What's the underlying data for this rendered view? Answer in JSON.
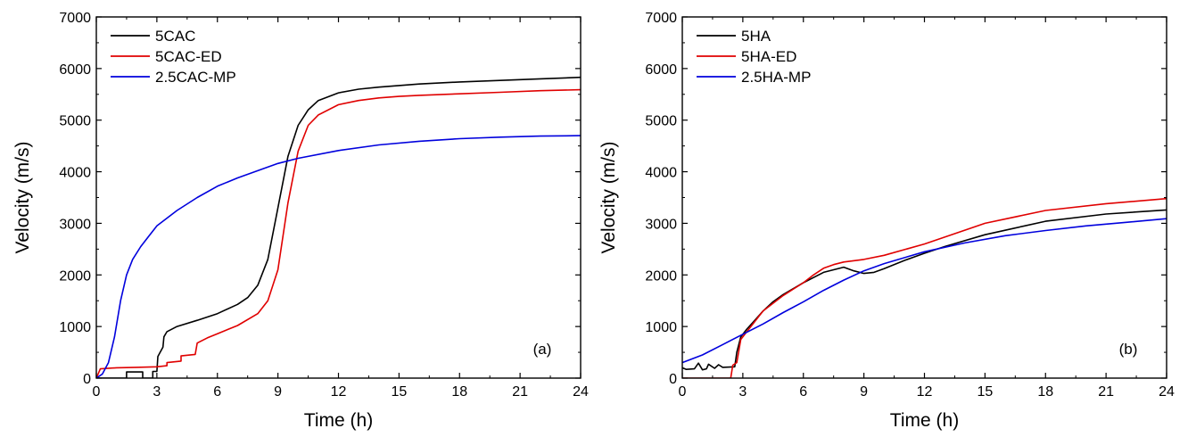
{
  "chart_data": [
    {
      "type": "line",
      "panel_label": "(a)",
      "xlabel": "Time (h)",
      "ylabel": "Velocity (m/s)",
      "xlim": [
        0,
        24
      ],
      "ylim": [
        0,
        7000
      ],
      "xticks": [
        "0",
        "3",
        "6",
        "9",
        "12",
        "15",
        "18",
        "21",
        "24"
      ],
      "yticks": [
        "0",
        "1000",
        "2000",
        "3000",
        "4000",
        "5000",
        "6000",
        "7000"
      ],
      "grid": false,
      "legend_position": "top-left",
      "series": [
        {
          "name": "5CAC",
          "color": "#000000",
          "x": [
            0,
            1.5,
            1.5,
            2.3,
            2.3,
            2.8,
            2.8,
            3.0,
            3.05,
            3.3,
            3.35,
            3.5,
            4,
            5,
            6,
            7,
            7.5,
            8,
            8.5,
            9,
            9.5,
            10,
            10.5,
            11,
            12,
            13,
            14,
            15,
            16,
            18,
            20,
            22,
            24
          ],
          "y": [
            0,
            0,
            120,
            120,
            0,
            0,
            130,
            130,
            420,
            600,
            800,
            900,
            1000,
            1120,
            1250,
            1430,
            1560,
            1800,
            2300,
            3300,
            4300,
            4900,
            5200,
            5380,
            5530,
            5600,
            5640,
            5670,
            5700,
            5740,
            5770,
            5800,
            5830
          ]
        },
        {
          "name": "5CAC-ED",
          "color": "#e00000",
          "x": [
            0,
            0.2,
            1,
            2,
            3,
            3.5,
            3.5,
            4.2,
            4.2,
            4.9,
            5.0,
            5.5,
            6,
            7,
            8,
            8.5,
            9,
            9.5,
            10,
            10.5,
            11,
            12,
            13,
            14,
            15,
            16,
            18,
            20,
            22,
            24
          ],
          "y": [
            0,
            180,
            200,
            210,
            220,
            240,
            300,
            330,
            430,
            460,
            680,
            780,
            860,
            1020,
            1250,
            1500,
            2100,
            3400,
            4400,
            4900,
            5100,
            5300,
            5380,
            5430,
            5460,
            5480,
            5510,
            5540,
            5570,
            5590
          ]
        },
        {
          "name": "2.5CAC-MP",
          "color": "#0000dd",
          "x": [
            0,
            0.3,
            0.6,
            0.9,
            1.2,
            1.5,
            1.8,
            2.2,
            2.6,
            3,
            4,
            5,
            6,
            7,
            8,
            9,
            10,
            12,
            14,
            16,
            18,
            20,
            22,
            24
          ],
          "y": [
            0,
            80,
            300,
            800,
            1500,
            2000,
            2300,
            2550,
            2750,
            2950,
            3250,
            3500,
            3720,
            3880,
            4020,
            4160,
            4260,
            4410,
            4520,
            4590,
            4640,
            4670,
            4690,
            4700
          ]
        }
      ]
    },
    {
      "type": "line",
      "panel_label": "(b)",
      "xlabel": "Time (h)",
      "ylabel": "Velocity (m/s)",
      "xlim": [
        0,
        24
      ],
      "ylim": [
        0,
        7000
      ],
      "xticks": [
        "0",
        "3",
        "6",
        "9",
        "12",
        "15",
        "18",
        "21",
        "24"
      ],
      "yticks": [
        "0",
        "1000",
        "2000",
        "3000",
        "4000",
        "5000",
        "6000",
        "7000"
      ],
      "grid": false,
      "legend_position": "top-left",
      "series": [
        {
          "name": "5HA",
          "color": "#000000",
          "x": [
            0,
            0.2,
            0.6,
            0.8,
            1.0,
            1.2,
            1.3,
            1.6,
            1.8,
            2.0,
            2.6,
            2.7,
            2.9,
            3.2,
            3.5,
            4,
            4.5,
            5,
            6,
            7,
            8,
            8.5,
            9,
            9.5,
            10,
            11,
            12,
            13,
            15,
            18,
            21,
            24
          ],
          "y": [
            200,
            170,
            180,
            290,
            160,
            180,
            270,
            190,
            260,
            210,
            220,
            500,
            800,
            950,
            1080,
            1300,
            1480,
            1620,
            1850,
            2050,
            2150,
            2080,
            2030,
            2050,
            2120,
            2280,
            2420,
            2550,
            2780,
            3040,
            3180,
            3260
          ]
        },
        {
          "name": "5HA-ED",
          "color": "#e00000",
          "x": [
            0,
            2.4,
            2.5,
            2.7,
            2.9,
            3.2,
            3.5,
            4,
            5,
            6,
            6.5,
            7,
            7.5,
            8,
            9,
            10,
            12,
            15,
            18,
            21,
            24
          ],
          "y": [
            0,
            0,
            250,
            300,
            750,
            900,
            1050,
            1300,
            1600,
            1850,
            2000,
            2130,
            2200,
            2250,
            2300,
            2380,
            2600,
            3000,
            3250,
            3380,
            3480
          ]
        },
        {
          "name": "2.5HA-MP",
          "color": "#0000dd",
          "x": [
            0,
            1,
            2,
            3,
            4,
            5,
            6,
            7,
            8,
            9,
            10,
            12,
            14,
            16,
            18,
            20,
            22,
            24
          ],
          "y": [
            300,
            450,
            650,
            850,
            1050,
            1270,
            1480,
            1700,
            1900,
            2080,
            2220,
            2450,
            2620,
            2760,
            2860,
            2950,
            3020,
            3090
          ]
        }
      ]
    }
  ]
}
